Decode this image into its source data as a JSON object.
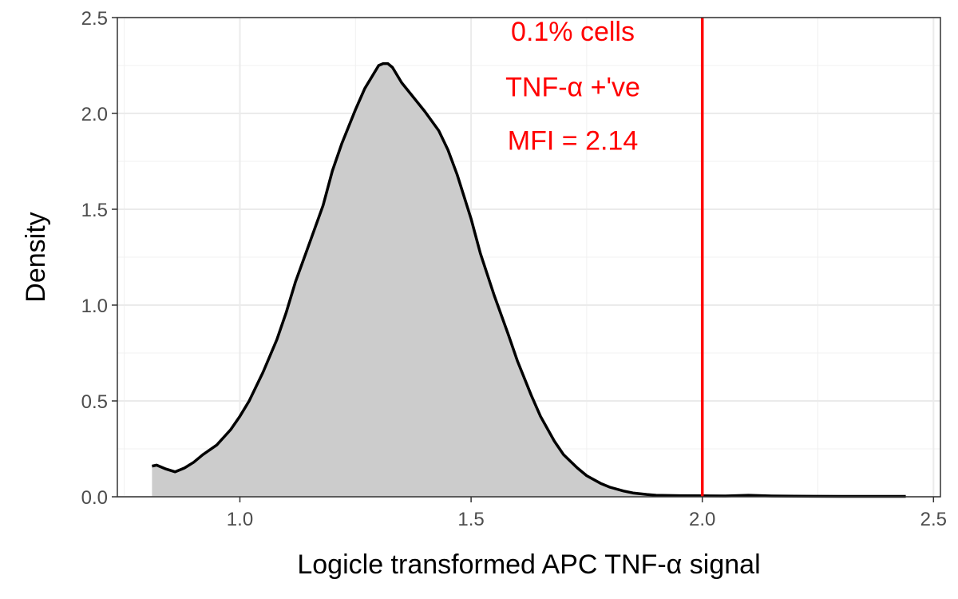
{
  "chart_data": {
    "type": "area",
    "title": "",
    "xlabel": "Logicle transformed APC TNF-α signal",
    "ylabel": "Density",
    "xlim": [
      0.735,
      2.515
    ],
    "ylim": [
      0,
      2.5
    ],
    "x_ticks": [
      "1.0",
      "1.5",
      "2.0",
      "2.5"
    ],
    "y_ticks": [
      "0.0",
      "0.5",
      "1.0",
      "1.5",
      "2.0",
      "2.5"
    ],
    "grid": true,
    "fill_color": "#cccccc",
    "line_color": "#000000",
    "series": [
      {
        "x": [
          0.81,
          0.82,
          0.84,
          0.86,
          0.88,
          0.9,
          0.92,
          0.95,
          0.98,
          1.0,
          1.02,
          1.05,
          1.08,
          1.1,
          1.12,
          1.15,
          1.18,
          1.2,
          1.22,
          1.25,
          1.27,
          1.29,
          1.3,
          1.31,
          1.32,
          1.33,
          1.34,
          1.35,
          1.37,
          1.4,
          1.43,
          1.45,
          1.47,
          1.5,
          1.52,
          1.55,
          1.58,
          1.6,
          1.63,
          1.65,
          1.68,
          1.7,
          1.73,
          1.75,
          1.78,
          1.8,
          1.83,
          1.85,
          1.88,
          1.9,
          1.95,
          2.0,
          2.05,
          2.1,
          2.15,
          2.2,
          2.3,
          2.4,
          2.44
        ],
        "y": [
          0.16,
          0.165,
          0.145,
          0.13,
          0.15,
          0.18,
          0.22,
          0.27,
          0.35,
          0.42,
          0.5,
          0.65,
          0.82,
          0.96,
          1.12,
          1.32,
          1.52,
          1.7,
          1.84,
          2.02,
          2.13,
          2.21,
          2.25,
          2.26,
          2.26,
          2.24,
          2.2,
          2.16,
          2.1,
          2.01,
          1.91,
          1.81,
          1.68,
          1.45,
          1.27,
          1.05,
          0.85,
          0.71,
          0.53,
          0.42,
          0.29,
          0.22,
          0.15,
          0.11,
          0.07,
          0.05,
          0.03,
          0.02,
          0.012,
          0.008,
          0.006,
          0.005,
          0.004,
          0.008,
          0.004,
          0.003,
          0.002,
          0.002,
          0.002
        ]
      }
    ],
    "vline": {
      "x": 2.0,
      "color": "#ff0000"
    },
    "annotations": {
      "x": 1.72,
      "color": "#ff0000",
      "lines": [
        {
          "text": "0.1% cells",
          "y": 2.38
        },
        {
          "text": "TNF-α +'ve",
          "y": 2.09
        },
        {
          "text": "MFI = 2.14",
          "y": 1.81
        }
      ]
    }
  }
}
